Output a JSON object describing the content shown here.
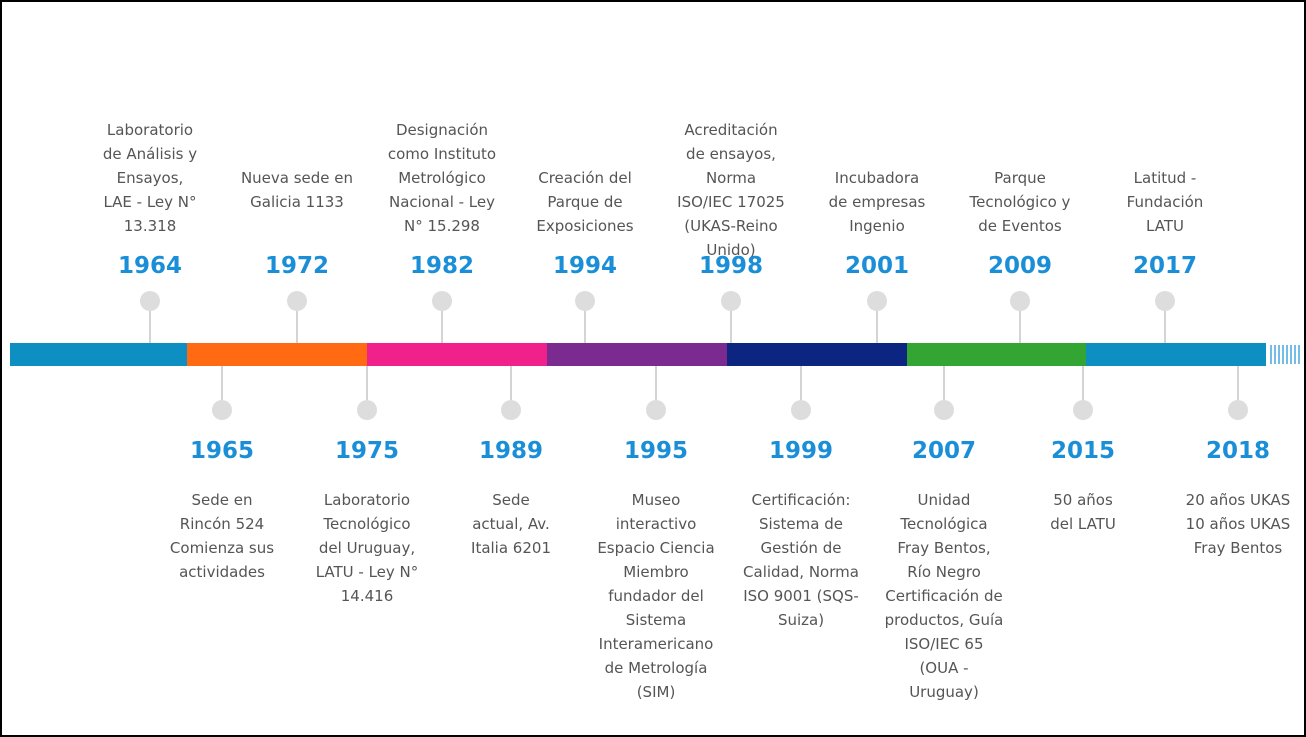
{
  "timeline": {
    "above": [
      {
        "year": "1964",
        "lines": [
          "Laboratorio",
          "de Análisis y",
          "Ensayos,",
          "LAE - Ley N°",
          "13.318"
        ]
      },
      {
        "year": "1972",
        "lines": [
          "Nueva sede en",
          "Galicia 1133"
        ]
      },
      {
        "year": "1982",
        "lines": [
          "Designación",
          "como Instituto",
          "Metrológico",
          "Nacional - Ley",
          "N° 15.298"
        ]
      },
      {
        "year": "1994",
        "lines": [
          "Creación del",
          "Parque de",
          "Exposiciones"
        ]
      },
      {
        "year": "1998",
        "lines": [
          "Acreditación",
          "de ensayos,",
          "Norma",
          "ISO/IEC 17025",
          "(UKAS-Reino",
          "Unido)"
        ]
      },
      {
        "year": "2001",
        "lines": [
          "Incubadora",
          "de empresas",
          "Ingenio"
        ]
      },
      {
        "year": "2009",
        "lines": [
          "Parque",
          "Tecnológico y",
          "de Eventos"
        ]
      },
      {
        "year": "2017",
        "lines": [
          "Latitud -",
          "Fundación",
          "LATU"
        ]
      }
    ],
    "below": [
      {
        "year": "1965",
        "lines": [
          "Sede en",
          "Rincón 524",
          "Comienza sus",
          "actividades"
        ]
      },
      {
        "year": "1975",
        "lines": [
          "Laboratorio",
          "Tecnológico",
          "del Uruguay,",
          "LATU - Ley N°",
          "14.416"
        ]
      },
      {
        "year": "1989",
        "lines": [
          "Sede",
          "actual, Av.",
          "Italia 6201"
        ]
      },
      {
        "year": "1995",
        "lines": [
          "Museo",
          "interactivo",
          "Espacio Ciencia",
          "Miembro",
          "fundador del",
          "Sistema",
          "Interamericano",
          "de Metrología",
          "(SIM)"
        ]
      },
      {
        "year": "1999",
        "lines": [
          "Certificación:",
          "Sistema de",
          "Gestión de",
          "Calidad, Norma",
          "ISO 9001 (SQS-",
          "Suiza)"
        ]
      },
      {
        "year": "2007",
        "lines": [
          "Unidad",
          "Tecnológica",
          "Fray Bentos,",
          "Río Negro",
          "Certificación de",
          "productos, Guía",
          "ISO/IEC 65",
          "(OUA -",
          "Uruguay)"
        ]
      },
      {
        "year": "2015",
        "lines": [
          "50 años",
          "del LATU"
        ]
      },
      {
        "year": "2018",
        "lines": [
          "20 años UKAS",
          "10 años UKAS",
          "Fray Bentos"
        ]
      }
    ]
  }
}
